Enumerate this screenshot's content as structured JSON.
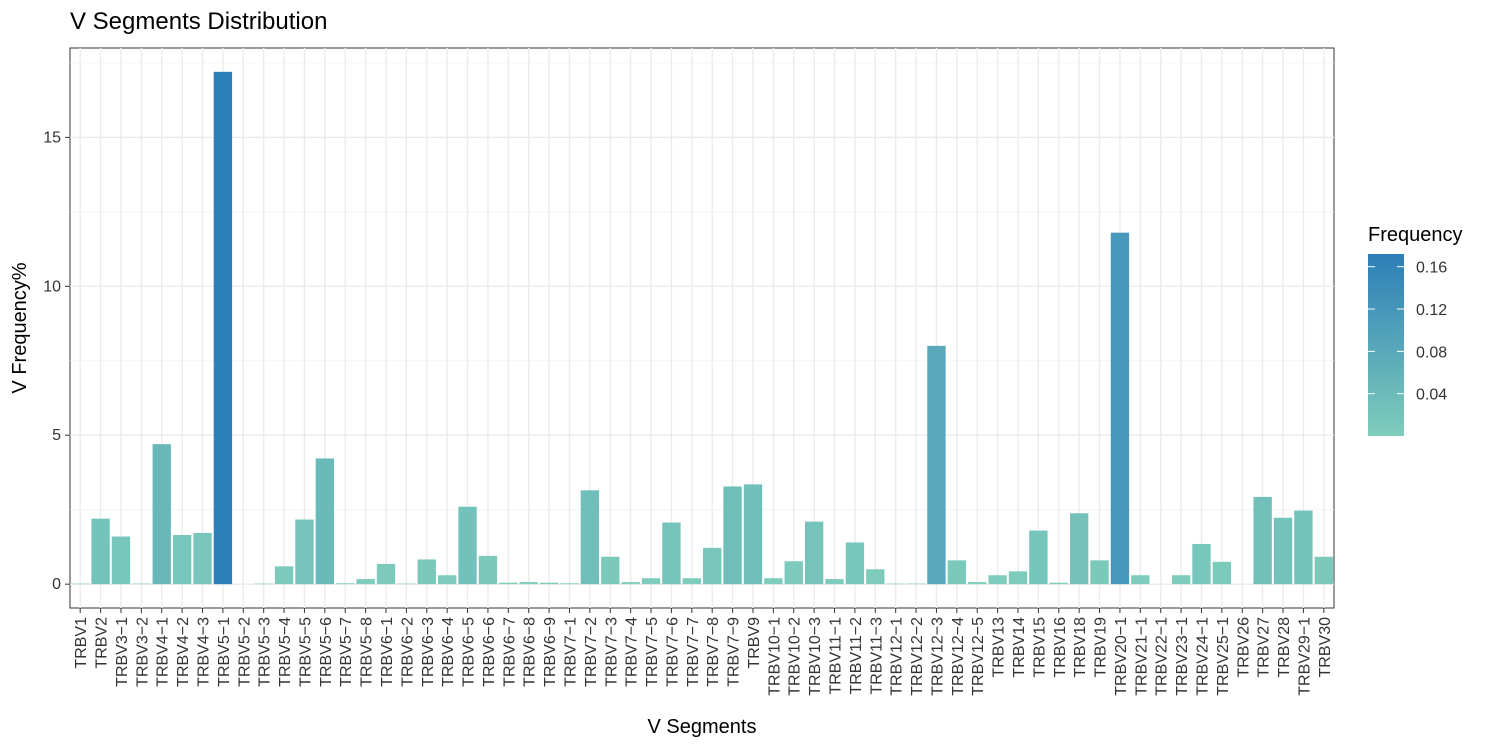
{
  "chart_data": {
    "type": "bar",
    "title": "V Segments Distribution",
    "xlabel": "V Segments",
    "ylabel": "V Frequency%",
    "ylim": [
      -0.8,
      18
    ],
    "yticks": [
      0,
      5,
      10,
      15
    ],
    "grid": true,
    "legend_placement": "right",
    "legend": {
      "title": "Frequency",
      "ticks": [
        0.04,
        0.08,
        0.12,
        0.16
      ],
      "range": [
        0.0,
        0.172
      ],
      "color_low": "#7fcdbb",
      "color_high": "#2c7fb8"
    },
    "categories": [
      "TRBV1",
      "TRBV2",
      "TRBV3-1",
      "TRBV3-2",
      "TRBV4-1",
      "TRBV4-2",
      "TRBV4-3",
      "TRBV5-1",
      "TRBV5-2",
      "TRBV5-3",
      "TRBV5-4",
      "TRBV5-5",
      "TRBV5-6",
      "TRBV5-7",
      "TRBV5-8",
      "TRBV6-1",
      "TRBV6-2",
      "TRBV6-3",
      "TRBV6-4",
      "TRBV6-5",
      "TRBV6-6",
      "TRBV6-7",
      "TRBV6-8",
      "TRBV6-9",
      "TRBV7-1",
      "TRBV7-2",
      "TRBV7-3",
      "TRBV7-4",
      "TRBV7-5",
      "TRBV7-6",
      "TRBV7-7",
      "TRBV7-8",
      "TRBV7-9",
      "TRBV9",
      "TRBV10-1",
      "TRBV10-2",
      "TRBV10-3",
      "TRBV11-1",
      "TRBV11-2",
      "TRBV11-3",
      "TRBV12-1",
      "TRBV12-2",
      "TRBV12-3",
      "TRBV12-4",
      "TRBV12-5",
      "TRBV13",
      "TRBV14",
      "TRBV15",
      "TRBV16",
      "TRBV18",
      "TRBV19",
      "TRBV20-1",
      "TRBV21-1",
      "TRBV22-1",
      "TRBV23-1",
      "TRBV24-1",
      "TRBV25-1",
      "TRBV26",
      "TRBV27",
      "TRBV28",
      "TRBV29-1",
      "TRBV30"
    ],
    "values": [
      0.02,
      2.2,
      1.6,
      0.02,
      4.7,
      1.65,
      1.72,
      17.2,
      0.0,
      0.02,
      0.6,
      2.17,
      4.22,
      0.03,
      0.17,
      0.68,
      0.02,
      0.83,
      0.3,
      2.6,
      0.95,
      0.05,
      0.07,
      0.05,
      0.03,
      3.15,
      0.92,
      0.07,
      0.2,
      2.07,
      0.2,
      1.22,
      3.28,
      3.35,
      0.2,
      0.77,
      2.1,
      0.17,
      1.4,
      0.5,
      0.02,
      0.02,
      8.0,
      0.8,
      0.07,
      0.3,
      0.43,
      1.8,
      0.05,
      2.38,
      0.8,
      11.8,
      0.3,
      0.0,
      0.3,
      1.35,
      0.75,
      0.0,
      2.93,
      2.23,
      2.47,
      0.92
    ]
  }
}
